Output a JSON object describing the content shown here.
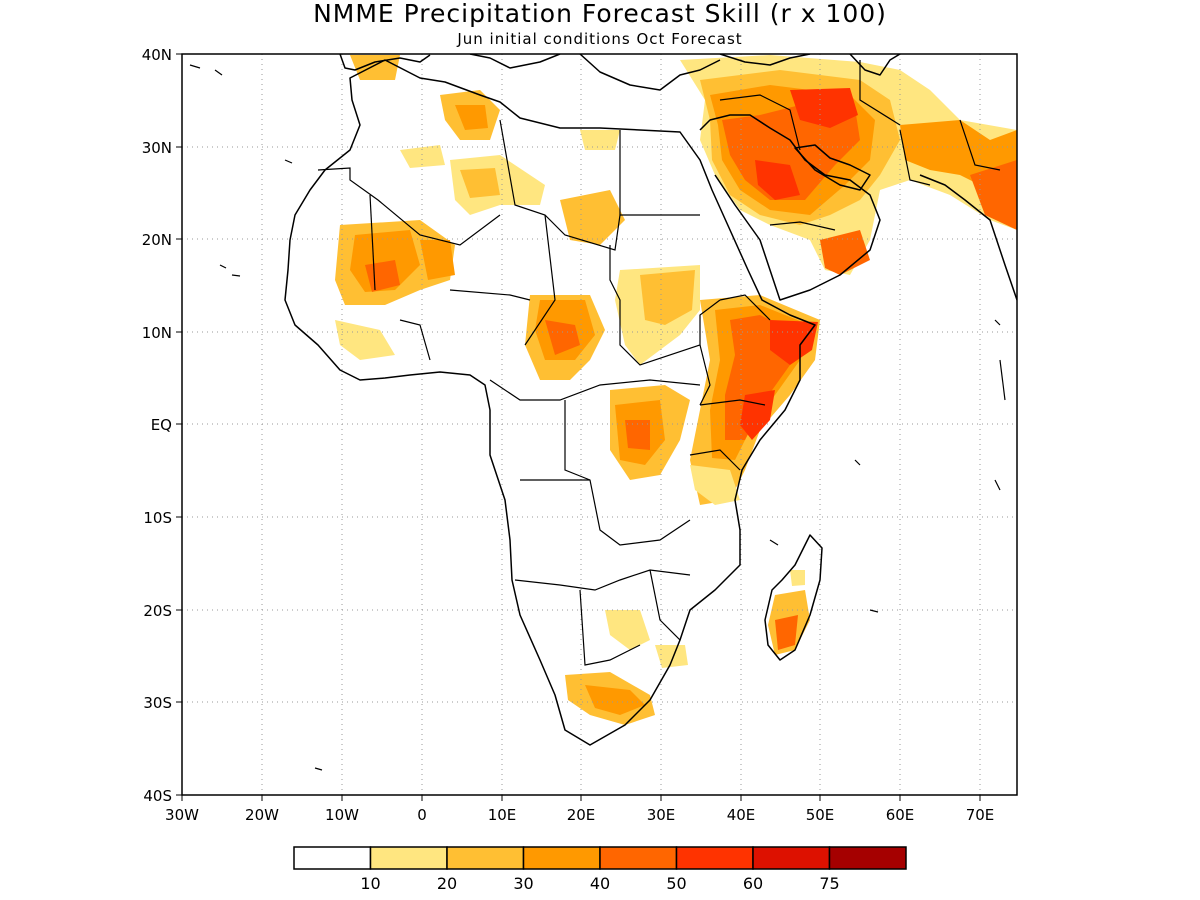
{
  "title": "NMME Precipitation Forecast Skill (r x 100)",
  "subtitle": "Jun initial conditions  Oct Forecast",
  "lat_labels": [
    "40N",
    "30N",
    "20N",
    "10N",
    "EQ",
    "10S",
    "20S",
    "30S",
    "40S"
  ],
  "lon_labels": [
    "30W",
    "20W",
    "10W",
    "0",
    "10E",
    "20E",
    "30E",
    "40E",
    "50E",
    "60E",
    "70E"
  ],
  "colorbar": {
    "colors": [
      "#ffffff",
      "#ffe680",
      "#ffbf33",
      "#ff9900",
      "#ff6600",
      "#ff3300",
      "#dd1100",
      "#a50000"
    ],
    "tick_labels": [
      "10",
      "20",
      "30",
      "40",
      "50",
      "60",
      "75"
    ]
  },
  "palette": {
    "level1": "#ffe680",
    "level2": "#ffbf33",
    "level3": "#ff9900",
    "level4": "#ff6600",
    "level5": "#ff3300",
    "level6": "#dd1100"
  }
}
